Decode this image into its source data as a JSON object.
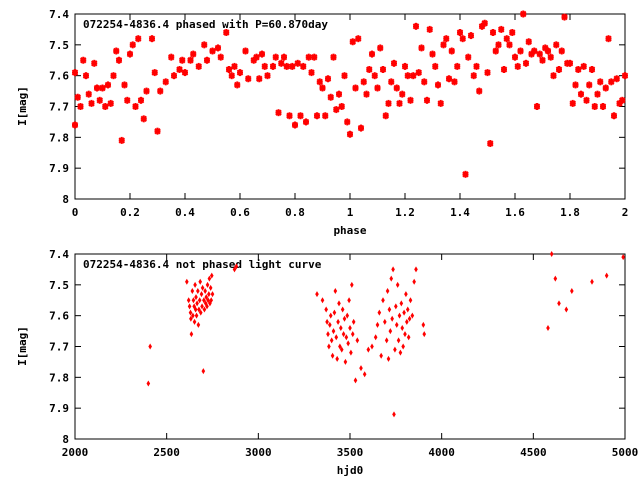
{
  "chart_data": [
    {
      "type": "scatter",
      "title": "072254-4836.4 phased with P=60.870day",
      "xlabel": "phase",
      "ylabel": "I[mag]",
      "xlim": [
        0,
        2
      ],
      "ylim": [
        7.4,
        8.0
      ],
      "y_inverted": true,
      "grid": false,
      "marker": "asterisk",
      "color": "#ff0000",
      "xticks": [
        "0",
        "0.2",
        "0.4",
        "0.6",
        "0.8",
        "1",
        "1.2",
        "1.4",
        "1.6",
        "1.8",
        "2"
      ],
      "yticks": [
        "7.4",
        "7.5",
        "7.6",
        "7.7",
        "7.8",
        "7.9",
        "8"
      ],
      "points": [
        [
          0.0,
          7.59
        ],
        [
          0.0,
          7.76
        ],
        [
          0.01,
          7.67
        ],
        [
          0.02,
          7.7
        ],
        [
          0.03,
          7.55
        ],
        [
          0.04,
          7.6
        ],
        [
          0.05,
          7.66
        ],
        [
          0.06,
          7.69
        ],
        [
          0.07,
          7.56
        ],
        [
          0.08,
          7.64
        ],
        [
          0.09,
          7.68
        ],
        [
          0.1,
          7.64
        ],
        [
          0.11,
          7.7
        ],
        [
          0.12,
          7.63
        ],
        [
          0.13,
          7.69
        ],
        [
          0.14,
          7.6
        ],
        [
          0.15,
          7.52
        ],
        [
          0.16,
          7.55
        ],
        [
          0.17,
          7.81
        ],
        [
          0.18,
          7.63
        ],
        [
          0.19,
          7.68
        ],
        [
          0.2,
          7.53
        ],
        [
          0.21,
          7.5
        ],
        [
          0.22,
          7.7
        ],
        [
          0.23,
          7.48
        ],
        [
          0.24,
          7.68
        ],
        [
          0.25,
          7.74
        ],
        [
          0.26,
          7.65
        ],
        [
          0.28,
          7.48
        ],
        [
          0.29,
          7.59
        ],
        [
          0.3,
          7.78
        ],
        [
          0.31,
          7.65
        ],
        [
          0.33,
          7.62
        ],
        [
          0.35,
          7.54
        ],
        [
          0.36,
          7.6
        ],
        [
          0.38,
          7.58
        ],
        [
          0.39,
          7.55
        ],
        [
          0.4,
          7.59
        ],
        [
          0.42,
          7.55
        ],
        [
          0.43,
          7.53
        ],
        [
          0.45,
          7.57
        ],
        [
          0.47,
          7.5
        ],
        [
          0.48,
          7.55
        ],
        [
          0.5,
          7.52
        ],
        [
          0.52,
          7.51
        ],
        [
          0.53,
          7.54
        ],
        [
          0.55,
          7.46
        ],
        [
          0.56,
          7.58
        ],
        [
          0.57,
          7.6
        ],
        [
          0.58,
          7.57
        ],
        [
          0.59,
          7.63
        ],
        [
          0.6,
          7.59
        ],
        [
          0.62,
          7.52
        ],
        [
          0.63,
          7.61
        ],
        [
          0.65,
          7.55
        ],
        [
          0.66,
          7.54
        ],
        [
          0.67,
          7.61
        ],
        [
          0.68,
          7.53
        ],
        [
          0.69,
          7.57
        ],
        [
          0.7,
          7.6
        ],
        [
          0.72,
          7.57
        ],
        [
          0.73,
          7.54
        ],
        [
          0.74,
          7.72
        ],
        [
          0.75,
          7.56
        ],
        [
          0.76,
          7.54
        ],
        [
          0.77,
          7.57
        ],
        [
          0.78,
          7.73
        ],
        [
          0.79,
          7.57
        ],
        [
          0.8,
          7.76
        ],
        [
          0.81,
          7.56
        ],
        [
          0.82,
          7.73
        ],
        [
          0.83,
          7.57
        ],
        [
          0.84,
          7.75
        ],
        [
          0.85,
          7.54
        ],
        [
          0.86,
          7.59
        ],
        [
          0.87,
          7.54
        ],
        [
          0.88,
          7.73
        ],
        [
          0.89,
          7.62
        ],
        [
          0.9,
          7.64
        ],
        [
          0.91,
          7.73
        ],
        [
          0.92,
          7.61
        ],
        [
          0.93,
          7.67
        ],
        [
          0.94,
          7.54
        ],
        [
          0.95,
          7.71
        ],
        [
          0.96,
          7.66
        ],
        [
          0.97,
          7.7
        ],
        [
          0.98,
          7.6
        ],
        [
          0.99,
          7.75
        ],
        [
          1.0,
          7.79
        ],
        [
          1.01,
          7.49
        ],
        [
          1.02,
          7.64
        ],
        [
          1.03,
          7.48
        ],
        [
          1.04,
          7.77
        ],
        [
          1.05,
          7.62
        ],
        [
          1.06,
          7.66
        ],
        [
          1.07,
          7.58
        ],
        [
          1.08,
          7.53
        ],
        [
          1.09,
          7.6
        ],
        [
          1.1,
          7.64
        ],
        [
          1.11,
          7.51
        ],
        [
          1.12,
          7.58
        ],
        [
          1.13,
          7.73
        ],
        [
          1.14,
          7.69
        ],
        [
          1.15,
          7.62
        ],
        [
          1.16,
          7.56
        ],
        [
          1.17,
          7.64
        ],
        [
          1.18,
          7.69
        ],
        [
          1.19,
          7.66
        ],
        [
          1.2,
          7.57
        ],
        [
          1.21,
          7.6
        ],
        [
          1.22,
          7.68
        ],
        [
          1.23,
          7.6
        ],
        [
          1.24,
          7.44
        ],
        [
          1.25,
          7.59
        ],
        [
          1.26,
          7.51
        ],
        [
          1.27,
          7.62
        ],
        [
          1.28,
          7.68
        ],
        [
          1.29,
          7.45
        ],
        [
          1.3,
          7.53
        ],
        [
          1.31,
          7.57
        ],
        [
          1.32,
          7.63
        ],
        [
          1.33,
          7.69
        ],
        [
          1.34,
          7.5
        ],
        [
          1.35,
          7.48
        ],
        [
          1.36,
          7.61
        ],
        [
          1.37,
          7.52
        ],
        [
          1.38,
          7.62
        ],
        [
          1.39,
          7.57
        ],
        [
          1.4,
          7.46
        ],
        [
          1.41,
          7.48
        ],
        [
          1.42,
          7.92
        ],
        [
          1.43,
          7.54
        ],
        [
          1.44,
          7.47
        ],
        [
          1.45,
          7.6
        ],
        [
          1.46,
          7.57
        ],
        [
          1.47,
          7.65
        ],
        [
          1.48,
          7.44
        ],
        [
          1.49,
          7.43
        ],
        [
          1.5,
          7.59
        ],
        [
          1.51,
          7.82
        ],
        [
          1.52,
          7.46
        ],
        [
          1.53,
          7.52
        ],
        [
          1.54,
          7.5
        ],
        [
          1.55,
          7.45
        ],
        [
          1.56,
          7.58
        ],
        [
          1.57,
          7.48
        ],
        [
          1.58,
          7.5
        ],
        [
          1.59,
          7.46
        ],
        [
          1.6,
          7.54
        ],
        [
          1.61,
          7.57
        ],
        [
          1.62,
          7.52
        ],
        [
          1.63,
          7.4
        ],
        [
          1.64,
          7.56
        ],
        [
          1.65,
          7.49
        ],
        [
          1.66,
          7.53
        ],
        [
          1.67,
          7.52
        ],
        [
          1.68,
          7.7
        ],
        [
          1.69,
          7.53
        ],
        [
          1.7,
          7.55
        ],
        [
          1.71,
          7.51
        ],
        [
          1.72,
          7.52
        ],
        [
          1.73,
          7.54
        ],
        [
          1.74,
          7.6
        ],
        [
          1.75,
          7.5
        ],
        [
          1.76,
          7.58
        ],
        [
          1.77,
          7.52
        ],
        [
          1.78,
          7.41
        ],
        [
          1.79,
          7.56
        ],
        [
          1.8,
          7.56
        ],
        [
          1.81,
          7.69
        ],
        [
          1.82,
          7.63
        ],
        [
          1.83,
          7.58
        ],
        [
          1.84,
          7.66
        ],
        [
          1.85,
          7.57
        ],
        [
          1.86,
          7.68
        ],
        [
          1.87,
          7.63
        ],
        [
          1.88,
          7.58
        ],
        [
          1.89,
          7.7
        ],
        [
          1.9,
          7.66
        ],
        [
          1.91,
          7.62
        ],
        [
          1.92,
          7.7
        ],
        [
          1.93,
          7.64
        ],
        [
          1.94,
          7.48
        ],
        [
          1.95,
          7.62
        ],
        [
          1.96,
          7.73
        ],
        [
          1.97,
          7.61
        ],
        [
          1.98,
          7.69
        ],
        [
          1.99,
          7.68
        ],
        [
          2.0,
          7.6
        ]
      ]
    },
    {
      "type": "scatter",
      "title": "072254-4836.4 not phased light curve",
      "xlabel": "hjd0",
      "ylabel": "I[mag]",
      "xlim": [
        2000,
        5000
      ],
      "ylim": [
        7.4,
        8.0
      ],
      "y_inverted": true,
      "grid": false,
      "marker": "diamond",
      "color": "#ff0000",
      "xticks": [
        "2000",
        "2500",
        "3000",
        "3500",
        "4000",
        "4500",
        "5000"
      ],
      "yticks": [
        "7.4",
        "7.5",
        "7.6",
        "7.7",
        "7.8",
        "7.9",
        "8"
      ],
      "points": [
        [
          2400,
          7.82
        ],
        [
          2410,
          7.7
        ],
        [
          2610,
          7.49
        ],
        [
          2620,
          7.55
        ],
        [
          2625,
          7.57
        ],
        [
          2630,
          7.59
        ],
        [
          2632,
          7.61
        ],
        [
          2635,
          7.66
        ],
        [
          2640,
          7.52
        ],
        [
          2643,
          7.6
        ],
        [
          2646,
          7.55
        ],
        [
          2650,
          7.57
        ],
        [
          2652,
          7.62
        ],
        [
          2655,
          7.5
        ],
        [
          2658,
          7.58
        ],
        [
          2660,
          7.54
        ],
        [
          2663,
          7.6
        ],
        [
          2666,
          7.56
        ],
        [
          2670,
          7.52
        ],
        [
          2673,
          7.63
        ],
        [
          2676,
          7.58
        ],
        [
          2680,
          7.55
        ],
        [
          2683,
          7.49
        ],
        [
          2686,
          7.59
        ],
        [
          2690,
          7.53
        ],
        [
          2693,
          7.57
        ],
        [
          2696,
          7.51
        ],
        [
          2700,
          7.78
        ],
        [
          2703,
          7.55
        ],
        [
          2706,
          7.58
        ],
        [
          2710,
          7.52
        ],
        [
          2713,
          7.56
        ],
        [
          2716,
          7.54
        ],
        [
          2720,
          7.57
        ],
        [
          2723,
          7.5
        ],
        [
          2726,
          7.55
        ],
        [
          2730,
          7.53
        ],
        [
          2733,
          7.48
        ],
        [
          2736,
          7.56
        ],
        [
          2740,
          7.51
        ],
        [
          2743,
          7.55
        ],
        [
          2746,
          7.47
        ],
        [
          2750,
          7.53
        ],
        [
          2870,
          7.45
        ],
        [
          2880,
          7.44
        ],
        [
          3320,
          7.53
        ],
        [
          3350,
          7.55
        ],
        [
          3370,
          7.58
        ],
        [
          3375,
          7.62
        ],
        [
          3380,
          7.66
        ],
        [
          3385,
          7.7
        ],
        [
          3390,
          7.63
        ],
        [
          3395,
          7.6
        ],
        [
          3400,
          7.68
        ],
        [
          3405,
          7.73
        ],
        [
          3410,
          7.65
        ],
        [
          3415,
          7.59
        ],
        [
          3420,
          7.52
        ],
        [
          3425,
          7.67
        ],
        [
          3430,
          7.74
        ],
        [
          3435,
          7.62
        ],
        [
          3440,
          7.56
        ],
        [
          3445,
          7.7
        ],
        [
          3450,
          7.64
        ],
        [
          3455,
          7.71
        ],
        [
          3460,
          7.58
        ],
        [
          3465,
          7.66
        ],
        [
          3470,
          7.61
        ],
        [
          3475,
          7.75
        ],
        [
          3480,
          7.67
        ],
        [
          3485,
          7.6
        ],
        [
          3490,
          7.69
        ],
        [
          3495,
          7.55
        ],
        [
          3500,
          7.64
        ],
        [
          3505,
          7.72
        ],
        [
          3510,
          7.5
        ],
        [
          3515,
          7.66
        ],
        [
          3520,
          7.62
        ],
        [
          3530,
          7.81
        ],
        [
          3540,
          7.68
        ],
        [
          3560,
          7.77
        ],
        [
          3580,
          7.79
        ],
        [
          3600,
          7.71
        ],
        [
          3620,
          7.7
        ],
        [
          3640,
          7.67
        ],
        [
          3650,
          7.63
        ],
        [
          3660,
          7.59
        ],
        [
          3670,
          7.73
        ],
        [
          3680,
          7.55
        ],
        [
          3690,
          7.62
        ],
        [
          3700,
          7.68
        ],
        [
          3705,
          7.52
        ],
        [
          3710,
          7.74
        ],
        [
          3715,
          7.58
        ],
        [
          3720,
          7.65
        ],
        [
          3725,
          7.48
        ],
        [
          3730,
          7.61
        ],
        [
          3735,
          7.45
        ],
        [
          3740,
          7.92
        ],
        [
          3745,
          7.71
        ],
        [
          3750,
          7.57
        ],
        [
          3755,
          7.63
        ],
        [
          3760,
          7.5
        ],
        [
          3765,
          7.68
        ],
        [
          3770,
          7.6
        ],
        [
          3775,
          7.72
        ],
        [
          3780,
          7.56
        ],
        [
          3785,
          7.64
        ],
        [
          3790,
          7.7
        ],
        [
          3795,
          7.59
        ],
        [
          3800,
          7.66
        ],
        [
          3805,
          7.53
        ],
        [
          3810,
          7.62
        ],
        [
          3815,
          7.58
        ],
        [
          3820,
          7.67
        ],
        [
          3825,
          7.61
        ],
        [
          3830,
          7.55
        ],
        [
          3840,
          7.6
        ],
        [
          3850,
          7.49
        ],
        [
          3860,
          7.45
        ],
        [
          3900,
          7.63
        ],
        [
          3905,
          7.66
        ],
        [
          4580,
          7.64
        ],
        [
          4600,
          7.4
        ],
        [
          4620,
          7.48
        ],
        [
          4640,
          7.56
        ],
        [
          4680,
          7.58
        ],
        [
          4710,
          7.52
        ],
        [
          4820,
          7.49
        ],
        [
          4900,
          7.47
        ],
        [
          4990,
          7.41
        ]
      ]
    }
  ]
}
